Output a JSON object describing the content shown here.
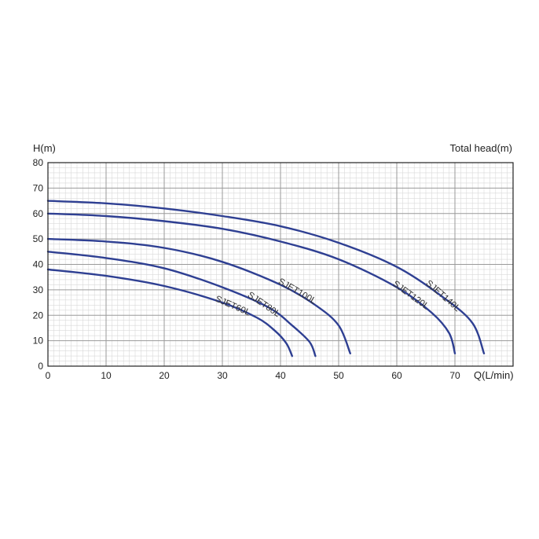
{
  "colors": {
    "curve": "#2e3f92",
    "grid_major": "#9a9a9a",
    "grid_minor": "#d9d9d9",
    "frame": "#222222"
  },
  "chart_data": {
    "type": "line",
    "title": "",
    "xlabel": "Q(L/min)",
    "ylabel": "H(m)",
    "ylabel_right": "Total head(m)",
    "xlim": [
      0,
      80
    ],
    "ylim": [
      0,
      80
    ],
    "x_ticks": [
      "0",
      "10",
      "20",
      "30",
      "40",
      "50",
      "60",
      "70"
    ],
    "y_ticks": [
      "0",
      "10",
      "20",
      "30",
      "40",
      "50",
      "60",
      "70",
      "80"
    ],
    "grid": true,
    "series": [
      {
        "name": "SJET60L",
        "points": [
          [
            0,
            38
          ],
          [
            10,
            35.5
          ],
          [
            20,
            31.5
          ],
          [
            30,
            25
          ],
          [
            36,
            19
          ],
          [
            39,
            14
          ],
          [
            41,
            9
          ],
          [
            42,
            4
          ]
        ]
      },
      {
        "name": "SJET80L",
        "points": [
          [
            0,
            45
          ],
          [
            10,
            42.5
          ],
          [
            20,
            38.5
          ],
          [
            30,
            31
          ],
          [
            38,
            23
          ],
          [
            42,
            16
          ],
          [
            45,
            9.5
          ],
          [
            46,
            4
          ]
        ]
      },
      {
        "name": "SJET100L",
        "points": [
          [
            0,
            50
          ],
          [
            10,
            49
          ],
          [
            20,
            46.5
          ],
          [
            30,
            41
          ],
          [
            40,
            32
          ],
          [
            46,
            24
          ],
          [
            50,
            16
          ],
          [
            52,
            5
          ]
        ]
      },
      {
        "name": "SJET120L",
        "points": [
          [
            0,
            60
          ],
          [
            10,
            59
          ],
          [
            20,
            57
          ],
          [
            30,
            54
          ],
          [
            40,
            49
          ],
          [
            50,
            42
          ],
          [
            60,
            31
          ],
          [
            66,
            21
          ],
          [
            69,
            13
          ],
          [
            70,
            5
          ]
        ]
      },
      {
        "name": "SJET140L",
        "points": [
          [
            0,
            65
          ],
          [
            10,
            64
          ],
          [
            20,
            62
          ],
          [
            30,
            59
          ],
          [
            40,
            55
          ],
          [
            50,
            48.5
          ],
          [
            60,
            39
          ],
          [
            68,
            27
          ],
          [
            73,
            17
          ],
          [
            75,
            5
          ]
        ]
      }
    ]
  }
}
